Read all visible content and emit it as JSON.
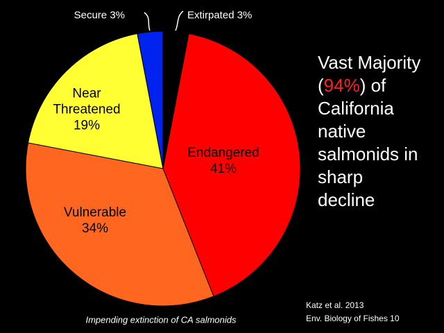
{
  "chart_data": {
    "type": "pie",
    "categories": [
      "Extirpated",
      "Endangered",
      "Vulnerable",
      "Near Threatened",
      "Secure"
    ],
    "values": [
      3,
      41,
      34,
      19,
      3
    ],
    "value_labels": [
      "3%",
      "41%",
      "34%",
      "19%",
      "3%"
    ],
    "colors": [
      "#000000",
      "#ff0000",
      "#ff6620",
      "#ffff33",
      "#0022ee"
    ]
  },
  "side_note": {
    "before": "Vast Majority (",
    "highlight": "94%",
    "after": ") of California native salmonids in sharp decline"
  },
  "caption": "Impending extinction of CA salmonids",
  "citation": [
    "Katz et al. 2013",
    "Env. Biology of Fishes 10"
  ]
}
